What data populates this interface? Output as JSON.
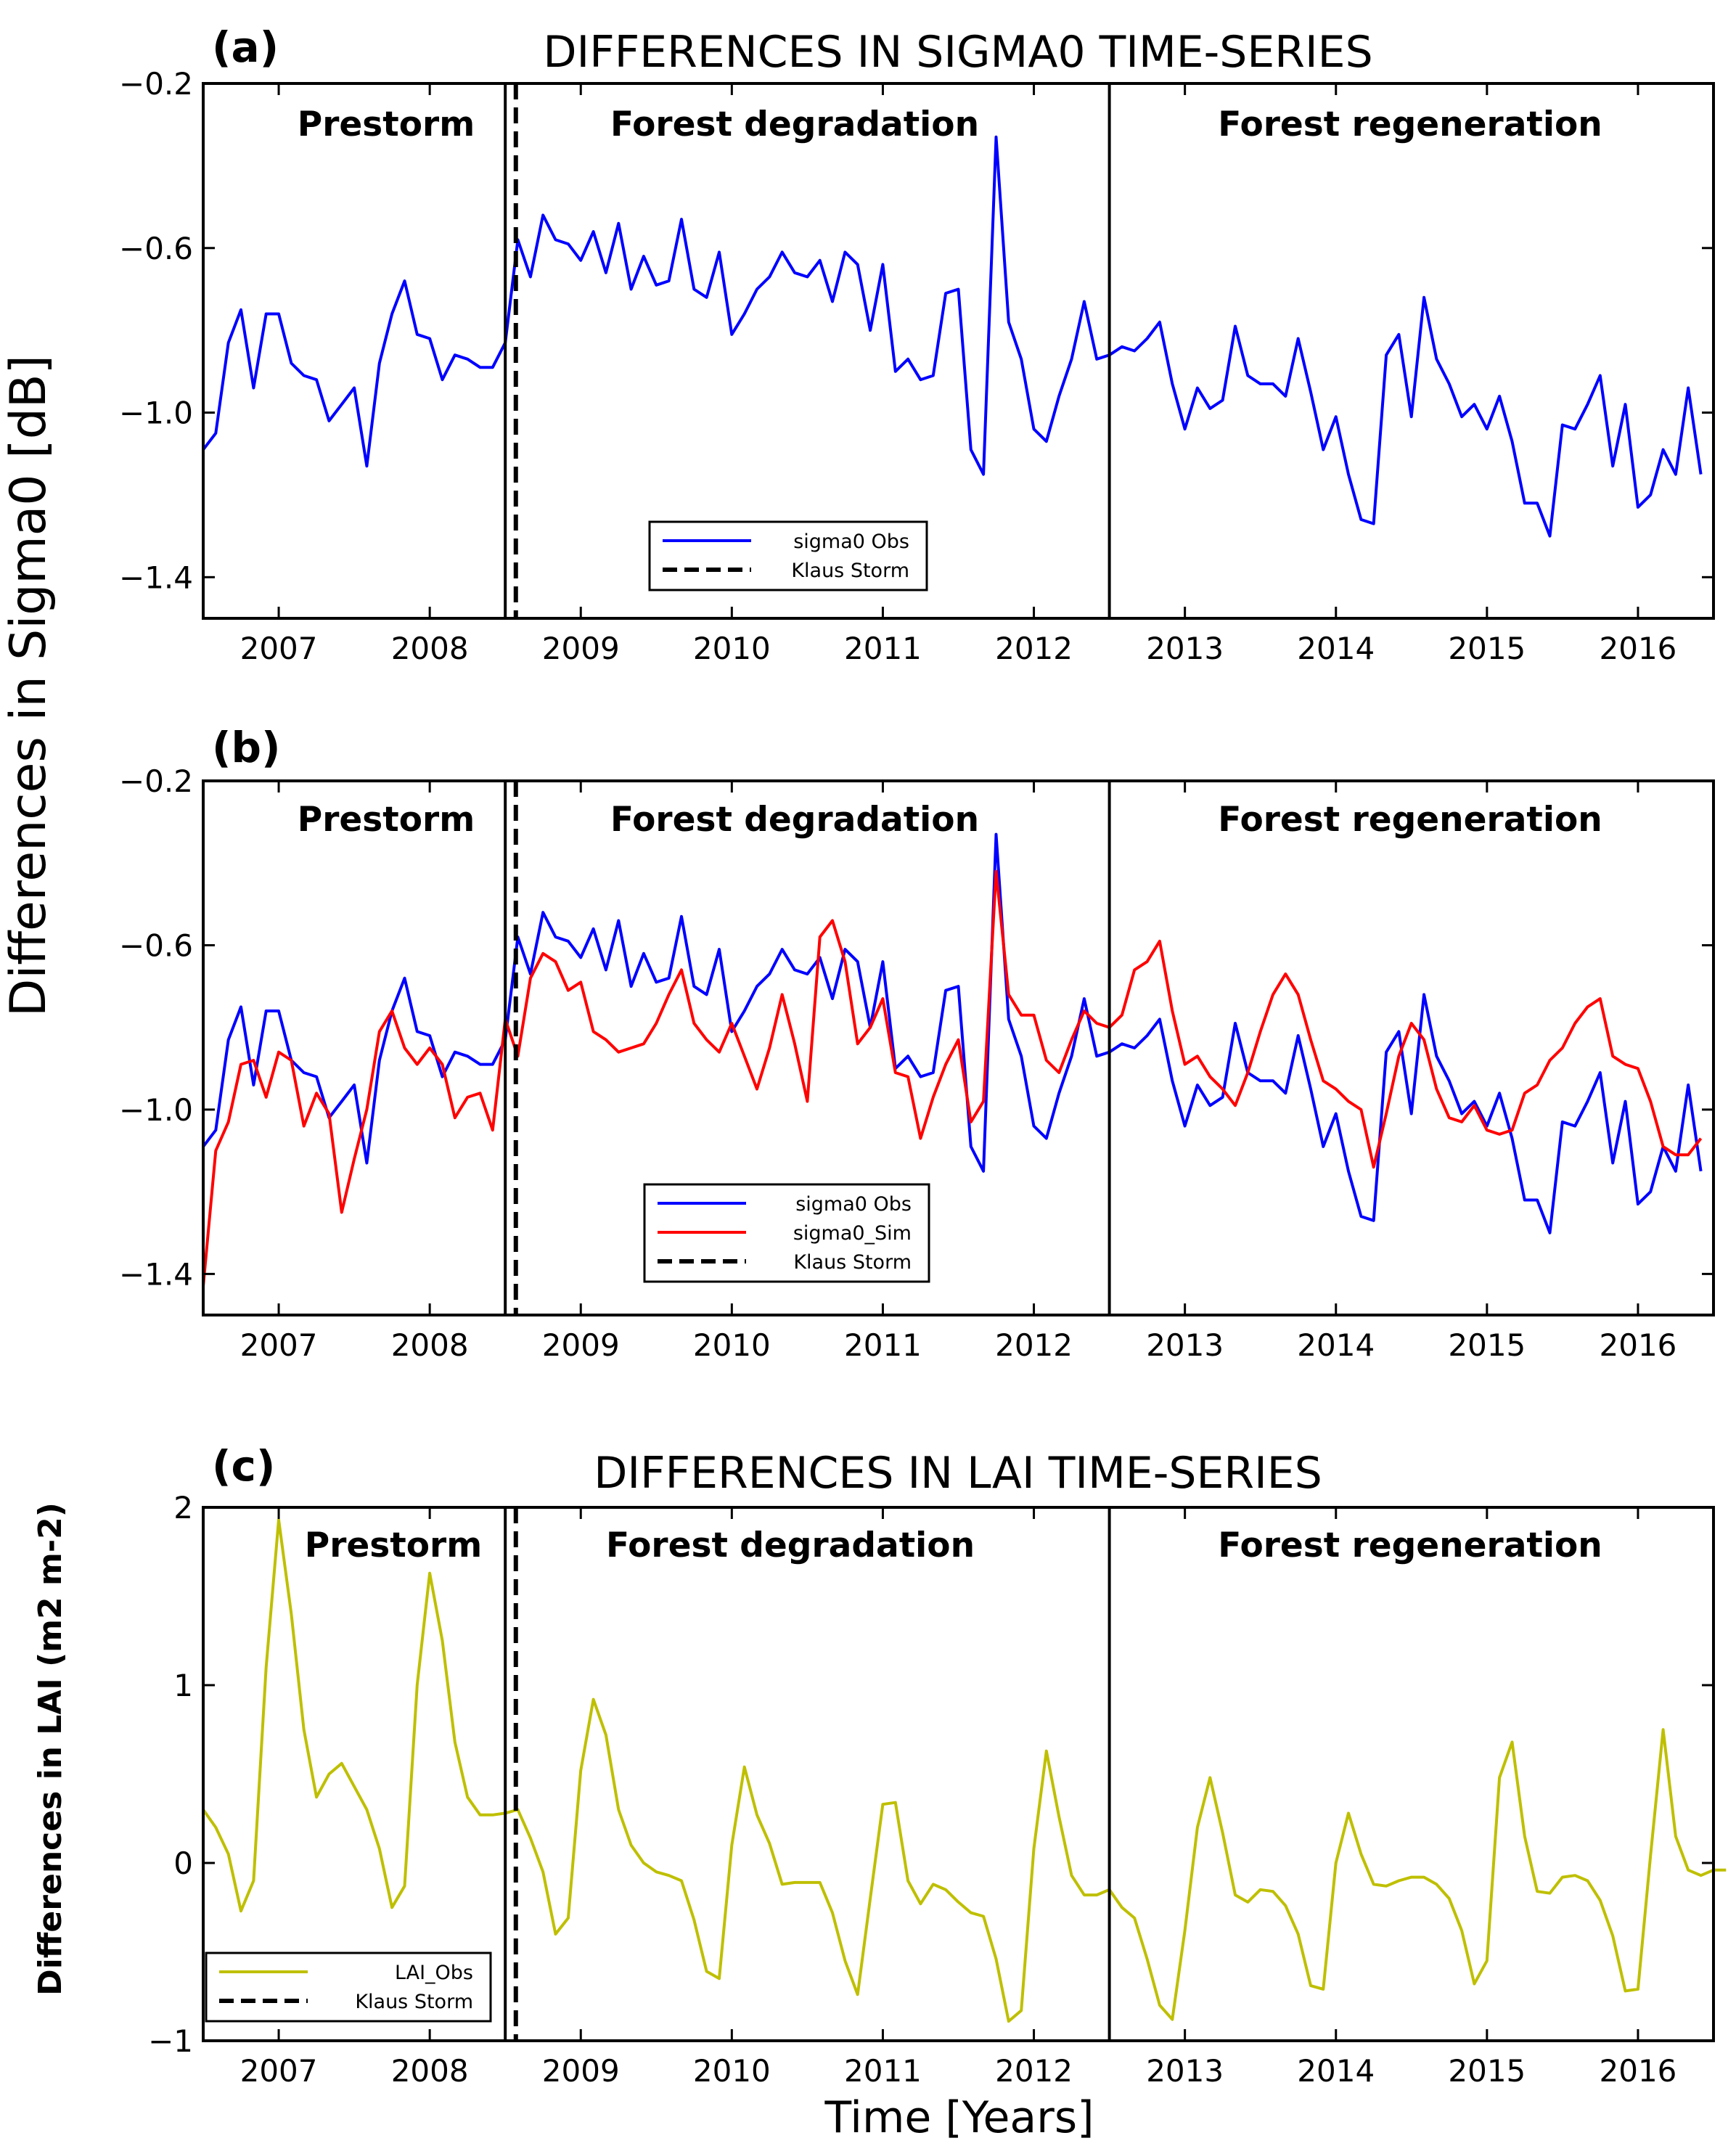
{
  "colors": {
    "obs": "#0000ff",
    "sim": "#ff0000",
    "lai": "#bfbf00",
    "axis": "#000000"
  },
  "figure": {
    "ylabel_top": "Differences in Sigma0 [dB]",
    "ylabel_bottom": "Differences in LAI (m2 m-2)",
    "xlabel": "Time [Years]"
  },
  "chart_data": [
    {
      "type": "line",
      "panel_label": "(a)",
      "title": "DIFFERENCES IN SIGMA0 TIME-SERIES",
      "xlim": [
        2006.5,
        2016.5
      ],
      "ylim": [
        -1.5,
        -0.2
      ],
      "xticks": [
        2007,
        2008,
        2009,
        2010,
        2011,
        2012,
        2013,
        2014,
        2015,
        2016
      ],
      "xtick_labels": [
        "2007",
        "2008",
        "2009",
        "2010",
        "2011",
        "2012",
        "2013",
        "2014",
        "2015",
        "2016"
      ],
      "yticks": [
        -1.4,
        -1.0,
        -0.6,
        -0.2
      ],
      "ytick_labels": [
        "−1.4",
        "−1.0",
        "−0.6",
        "−0.2"
      ],
      "regions": [
        "Prestorm",
        "Forest degradation",
        "Forest regeneration"
      ],
      "phase_boundaries": [
        2008.5,
        2012.5
      ],
      "storm_date": 2008.57,
      "legend": [
        "sigma0 Obs",
        "Klaus Storm"
      ],
      "series": [
        {
          "name": "sigma0 Obs",
          "key": "obs",
          "x_start": 2006.5,
          "x_step": 0.08333,
          "values": [
            -1.09,
            -1.05,
            -0.83,
            -0.75,
            -0.94,
            -0.76,
            -0.76,
            -0.88,
            -0.91,
            -0.92,
            -1.02,
            -0.98,
            -0.94,
            -1.13,
            -0.88,
            -0.76,
            -0.68,
            -0.81,
            -0.82,
            -0.92,
            -0.86,
            -0.87,
            -0.89,
            -0.89,
            -0.83,
            -0.58,
            -0.67,
            -0.52,
            -0.58,
            -0.59,
            -0.63,
            -0.56,
            -0.66,
            -0.54,
            -0.7,
            -0.62,
            -0.69,
            -0.68,
            -0.53,
            -0.7,
            -0.72,
            -0.61,
            -0.81,
            -0.76,
            -0.7,
            -0.67,
            -0.61,
            -0.66,
            -0.67,
            -0.63,
            -0.73,
            -0.61,
            -0.64,
            -0.8,
            -0.64,
            -0.9,
            -0.87,
            -0.92,
            -0.91,
            -0.71,
            -0.7,
            -1.09,
            -1.15,
            -0.33,
            -0.78,
            -0.87,
            -1.04,
            -1.07,
            -0.96,
            -0.87,
            -0.73,
            -0.87,
            -0.86,
            -0.84,
            -0.85,
            -0.82,
            -0.78,
            -0.93,
            -1.04,
            -0.94,
            -0.99,
            -0.97,
            -0.79,
            -0.91,
            -0.93,
            -0.93,
            -0.96,
            -0.82,
            -0.95,
            -1.09,
            -1.01,
            -1.15,
            -1.26,
            -1.27,
            -0.86,
            -0.81,
            -1.01,
            -0.72,
            -0.87,
            -0.93,
            -1.01,
            -0.98,
            -1.04,
            -0.96,
            -1.07,
            -1.22,
            -1.22,
            -1.3,
            -1.03,
            -1.04,
            -0.98,
            -0.91,
            -1.13,
            -0.98,
            -1.23,
            -1.2,
            -1.09,
            -1.15,
            -0.94,
            -1.15
          ]
        }
      ]
    },
    {
      "type": "line",
      "panel_label": "(b)",
      "title": "",
      "xlim": [
        2006.5,
        2016.5
      ],
      "ylim": [
        -1.5,
        -0.2
      ],
      "xticks": [
        2007,
        2008,
        2009,
        2010,
        2011,
        2012,
        2013,
        2014,
        2015,
        2016
      ],
      "xtick_labels": [
        "2007",
        "2008",
        "2009",
        "2010",
        "2011",
        "2012",
        "2013",
        "2014",
        "2015",
        "2016"
      ],
      "yticks": [
        -1.4,
        -1.0,
        -0.6,
        -0.2
      ],
      "ytick_labels": [
        "−1.4",
        "−1.0",
        "−0.6",
        "−0.2"
      ],
      "regions": [
        "Prestorm",
        "Forest degradation",
        "Forest regeneration"
      ],
      "phase_boundaries": [
        2008.5,
        2012.5
      ],
      "storm_date": 2008.57,
      "legend": [
        "sigma0 Obs",
        "sigma0_Sim",
        "Klaus Storm"
      ],
      "series": [
        {
          "name": "sigma0 Obs",
          "key": "obs",
          "x_start": 2006.5,
          "x_step": 0.08333,
          "values": [
            -1.09,
            -1.05,
            -0.83,
            -0.75,
            -0.94,
            -0.76,
            -0.76,
            -0.88,
            -0.91,
            -0.92,
            -1.02,
            -0.98,
            -0.94,
            -1.13,
            -0.88,
            -0.76,
            -0.68,
            -0.81,
            -0.82,
            -0.92,
            -0.86,
            -0.87,
            -0.89,
            -0.89,
            -0.83,
            -0.58,
            -0.67,
            -0.52,
            -0.58,
            -0.59,
            -0.63,
            -0.56,
            -0.66,
            -0.54,
            -0.7,
            -0.62,
            -0.69,
            -0.68,
            -0.53,
            -0.7,
            -0.72,
            -0.61,
            -0.81,
            -0.76,
            -0.7,
            -0.67,
            -0.61,
            -0.66,
            -0.67,
            -0.63,
            -0.73,
            -0.61,
            -0.64,
            -0.8,
            -0.64,
            -0.9,
            -0.87,
            -0.92,
            -0.91,
            -0.71,
            -0.7,
            -1.09,
            -1.15,
            -0.33,
            -0.78,
            -0.87,
            -1.04,
            -1.07,
            -0.96,
            -0.87,
            -0.73,
            -0.87,
            -0.86,
            -0.84,
            -0.85,
            -0.82,
            -0.78,
            -0.93,
            -1.04,
            -0.94,
            -0.99,
            -0.97,
            -0.79,
            -0.91,
            -0.93,
            -0.93,
            -0.96,
            -0.82,
            -0.95,
            -1.09,
            -1.01,
            -1.15,
            -1.26,
            -1.27,
            -0.86,
            -0.81,
            -1.01,
            -0.72,
            -0.87,
            -0.93,
            -1.01,
            -0.98,
            -1.04,
            -0.96,
            -1.07,
            -1.22,
            -1.22,
            -1.3,
            -1.03,
            -1.04,
            -0.98,
            -0.91,
            -1.13,
            -0.98,
            -1.23,
            -1.2,
            -1.09,
            -1.15,
            -0.94,
            -1.15
          ]
        },
        {
          "name": "sigma0_Sim",
          "key": "sim",
          "x_start": 2006.5,
          "x_step": 0.08333,
          "values": [
            -1.43,
            -1.1,
            -1.03,
            -0.89,
            -0.88,
            -0.97,
            -0.86,
            -0.88,
            -1.04,
            -0.96,
            -1.01,
            -1.25,
            -1.12,
            -1.0,
            -0.81,
            -0.76,
            -0.85,
            -0.89,
            -0.85,
            -0.89,
            -1.02,
            -0.97,
            -0.96,
            -1.05,
            -0.78,
            -0.87,
            -0.68,
            -0.62,
            -0.64,
            -0.71,
            -0.69,
            -0.81,
            -0.83,
            -0.86,
            -0.85,
            -0.84,
            -0.79,
            -0.72,
            -0.66,
            -0.79,
            -0.83,
            -0.86,
            -0.79,
            -0.87,
            -0.95,
            -0.85,
            -0.72,
            -0.84,
            -0.98,
            -0.58,
            -0.54,
            -0.64,
            -0.84,
            -0.8,
            -0.73,
            -0.91,
            -0.92,
            -1.07,
            -0.97,
            -0.89,
            -0.83,
            -1.03,
            -0.98,
            -0.42,
            -0.72,
            -0.77,
            -0.77,
            -0.88,
            -0.91,
            -0.83,
            -0.76,
            -0.79,
            -0.8,
            -0.77,
            -0.66,
            -0.64,
            -0.59,
            -0.76,
            -0.89,
            -0.87,
            -0.92,
            -0.95,
            -0.99,
            -0.91,
            -0.81,
            -0.72,
            -0.67,
            -0.72,
            -0.83,
            -0.93,
            -0.95,
            -0.98,
            -1.0,
            -1.14,
            -1.01,
            -0.87,
            -0.79,
            -0.83,
            -0.95,
            -1.02,
            -1.03,
            -0.99,
            -1.05,
            -1.06,
            -1.05,
            -0.96,
            -0.94,
            -0.88,
            -0.85,
            -0.79,
            -0.75,
            -0.73,
            -0.87,
            -0.89,
            -0.9,
            -0.98,
            -1.09,
            -1.11,
            -1.11,
            -1.07
          ]
        }
      ]
    },
    {
      "type": "line",
      "panel_label": "(c)",
      "title": "DIFFERENCES IN LAI TIME-SERIES",
      "xlim": [
        2006.5,
        2016.5
      ],
      "ylim": [
        -1,
        2
      ],
      "xticks": [
        2007,
        2008,
        2009,
        2010,
        2011,
        2012,
        2013,
        2014,
        2015,
        2016
      ],
      "xtick_labels": [
        "2007",
        "2008",
        "2009",
        "2010",
        "2011",
        "2012",
        "2013",
        "2014",
        "2015",
        "2016"
      ],
      "yticks": [
        -1,
        0,
        1,
        2
      ],
      "ytick_labels": [
        "−1",
        "0",
        "1",
        "2"
      ],
      "regions": [
        "Prestorm",
        "Forest degradation",
        "Forest regeneration"
      ],
      "phase_boundaries": [
        2008.5,
        2012.5
      ],
      "storm_date": 2008.57,
      "legend": [
        "LAI_Obs",
        "Klaus Storm"
      ],
      "series": [
        {
          "name": "LAI_Obs",
          "key": "lai",
          "x_start": 2006.5,
          "x_step": 0.08333,
          "values": [
            0.3,
            0.2,
            0.05,
            -0.27,
            -0.1,
            1.1,
            1.93,
            1.4,
            0.75,
            0.37,
            0.5,
            0.56,
            0.43,
            0.3,
            0.08,
            -0.25,
            -0.13,
            1.0,
            1.63,
            1.25,
            0.68,
            0.37,
            0.27,
            0.27,
            0.28,
            0.3,
            0.14,
            -0.05,
            -0.4,
            -0.31,
            0.52,
            0.92,
            0.72,
            0.3,
            0.1,
            0.0,
            -0.05,
            -0.07,
            -0.1,
            -0.32,
            -0.61,
            -0.65,
            0.1,
            0.54,
            0.27,
            0.11,
            -0.12,
            -0.11,
            -0.11,
            -0.11,
            -0.28,
            -0.55,
            -0.74,
            -0.2,
            0.33,
            0.34,
            -0.1,
            -0.23,
            -0.12,
            -0.15,
            -0.22,
            -0.28,
            -0.3,
            -0.54,
            -0.89,
            -0.83,
            0.08,
            0.63,
            0.26,
            -0.07,
            -0.18,
            -0.18,
            -0.15,
            -0.25,
            -0.31,
            -0.54,
            -0.8,
            -0.88,
            -0.38,
            0.2,
            0.48,
            0.17,
            -0.18,
            -0.22,
            -0.15,
            -0.16,
            -0.24,
            -0.4,
            -0.69,
            -0.71,
            0.0,
            0.28,
            0.05,
            -0.12,
            -0.13,
            -0.1,
            -0.08,
            -0.08,
            -0.12,
            -0.2,
            -0.38,
            -0.68,
            -0.55,
            0.48,
            0.68,
            0.15,
            -0.16,
            -0.17,
            -0.08,
            -0.07,
            -0.1,
            -0.21,
            -0.41,
            -0.72,
            -0.71,
            0.04,
            0.75,
            0.15,
            -0.04,
            -0.07,
            -0.04,
            -0.04
          ]
        }
      ]
    }
  ]
}
